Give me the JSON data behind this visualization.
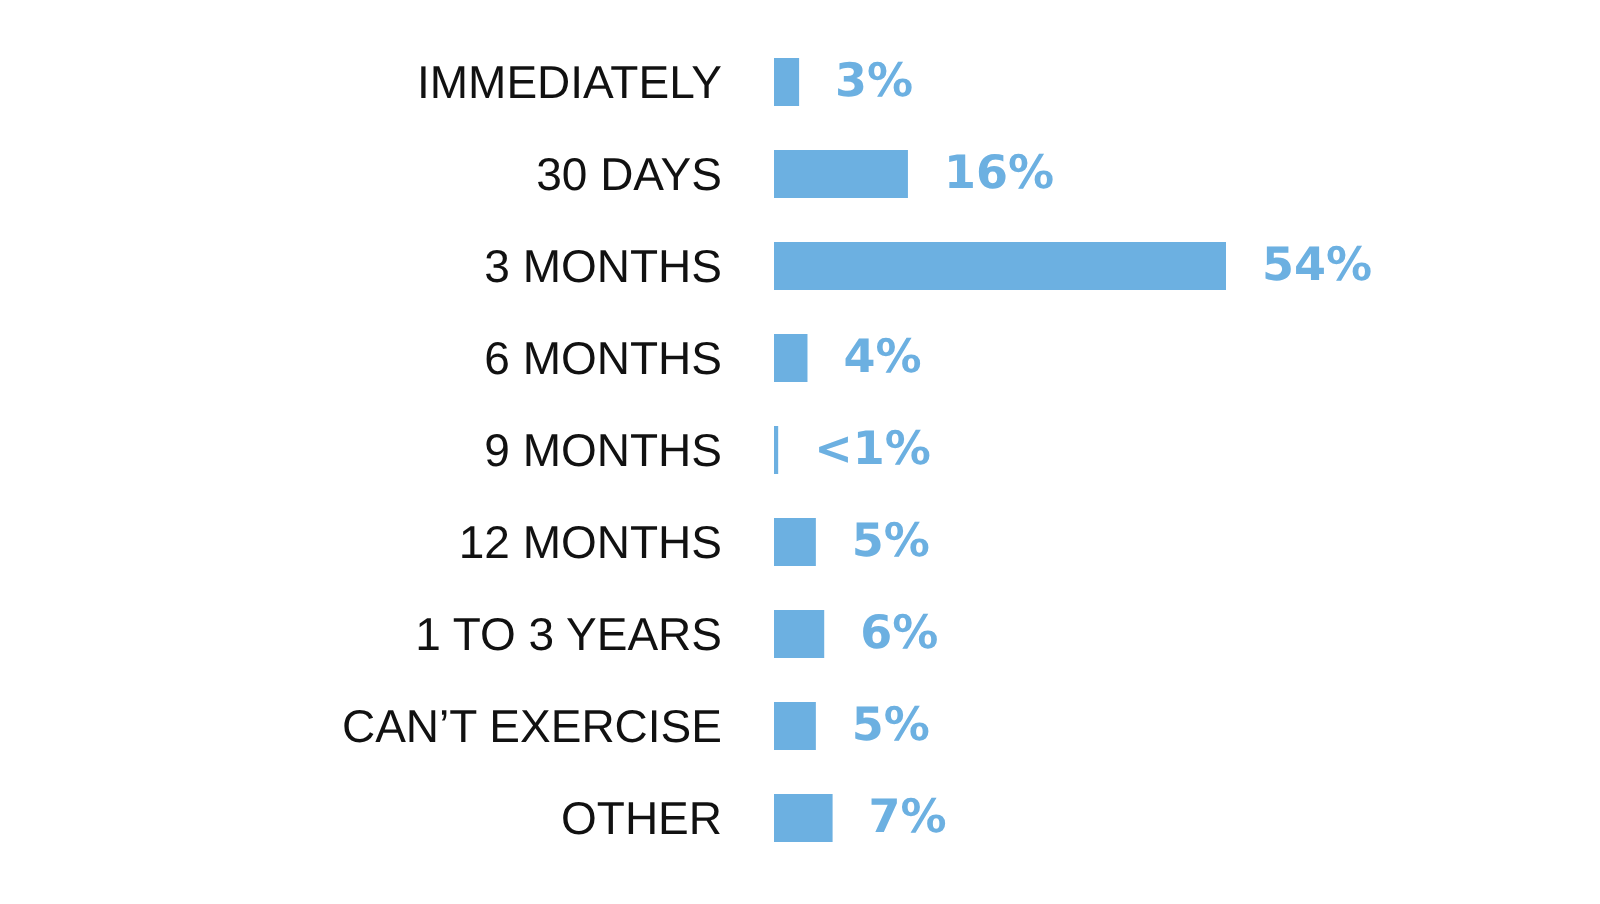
{
  "chart_data": {
    "type": "bar",
    "orientation": "horizontal",
    "categories": [
      "IMMEDIATELY",
      "30 DAYS",
      "3 MONTHS",
      "6 MONTHS",
      "9 MONTHS",
      "12 MONTHS",
      "1 TO 3 YEARS",
      "CAN’T EXERCISE",
      "OTHER"
    ],
    "values": [
      3,
      16,
      54,
      4,
      0.5,
      5,
      6,
      5,
      7
    ],
    "value_labels": [
      "3%",
      "16%",
      "54%",
      "4%",
      "<1%",
      "5%",
      "6%",
      "5%",
      "7%"
    ],
    "color": "#6cb0e1"
  }
}
